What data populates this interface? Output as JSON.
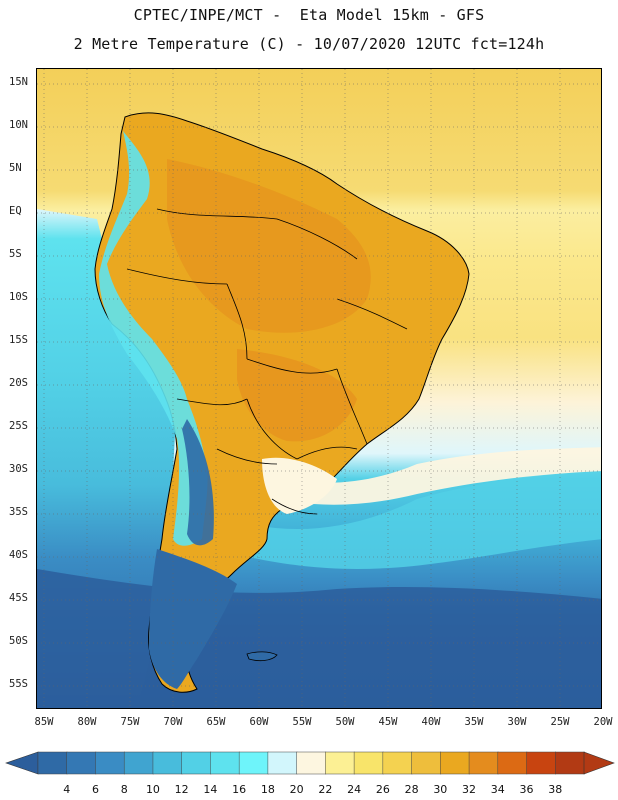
{
  "header": {
    "line1": "CPTEC/INPE/MCT -  Eta Model 15km - GFS",
    "line2": "2 Metre Temperature (C) - 10/07/2020 12UTC fct=124h"
  },
  "axes": {
    "lat_labels": [
      "15N",
      "10N",
      "5N",
      "EQ",
      "5S",
      "10S",
      "15S",
      "20S",
      "25S",
      "30S",
      "35S",
      "40S",
      "45S",
      "50S",
      "55S"
    ],
    "lon_labels": [
      "85W",
      "80W",
      "75W",
      "70W",
      "65W",
      "60W",
      "55W",
      "50W",
      "45W",
      "40W",
      "35W",
      "30W",
      "25W",
      "20W"
    ]
  },
  "colorbar": {
    "ticks": [
      "4",
      "6",
      "8",
      "10",
      "12",
      "14",
      "16",
      "18",
      "20",
      "22",
      "24",
      "26",
      "28",
      "30",
      "32",
      "34",
      "36",
      "38"
    ],
    "colors": [
      "#2f6aa6",
      "#3478b4",
      "#3a8cc4",
      "#40a4d0",
      "#48bcdc",
      "#52d0e6",
      "#5ee2ee",
      "#6ef4fa",
      "#d2f6fc",
      "#fdf6e0",
      "#fcf094",
      "#f8e46a",
      "#f4d250",
      "#eebe3c",
      "#eaa820",
      "#e48c1e",
      "#dc6a14",
      "#c84410",
      "#b23a14"
    ],
    "under_color": "#2c5e9c",
    "over_color": "#b23a14"
  },
  "legend_title": "2 Metre Temperature (C)"
}
